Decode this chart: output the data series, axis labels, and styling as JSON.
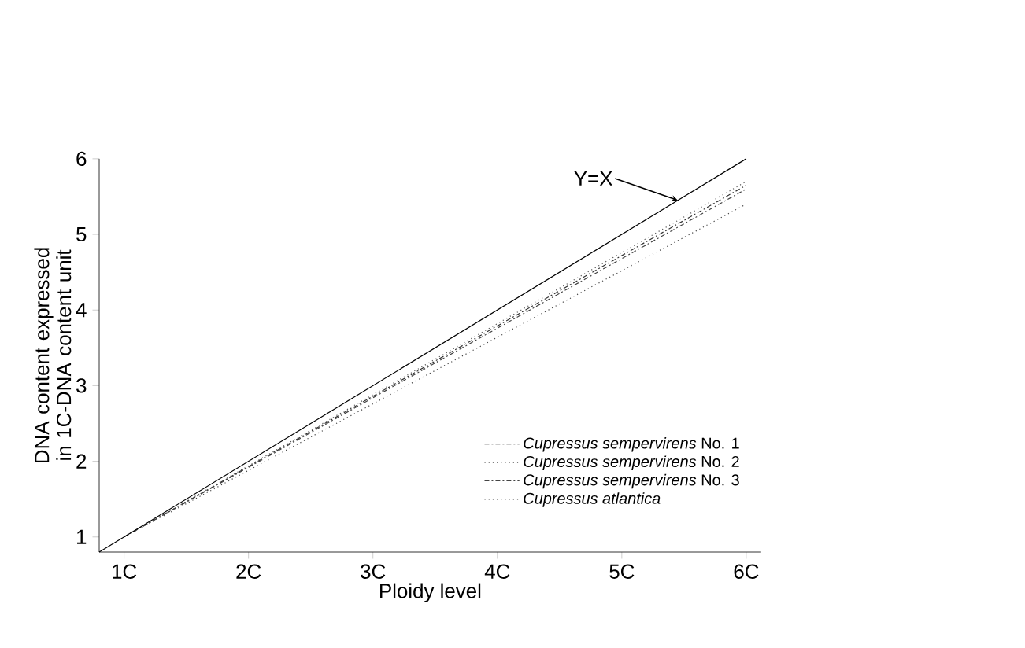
{
  "chart_data": {
    "type": "line",
    "xlabel": "Ploidy level",
    "ylabel": "DNA content expressed in 1C-DNA content unit",
    "xlim": [
      0.8,
      6.12
    ],
    "ylim": [
      0.8,
      6
    ],
    "xticks": [
      {
        "value": 1,
        "label": "1C"
      },
      {
        "value": 2,
        "label": "2C"
      },
      {
        "value": 3,
        "label": "3C"
      },
      {
        "value": 4,
        "label": "4C"
      },
      {
        "value": 5,
        "label": "5C"
      },
      {
        "value": 6,
        "label": "6C"
      }
    ],
    "yticks": [
      1,
      2,
      3,
      4,
      5,
      6
    ],
    "series": [
      {
        "name": "*Cupressus sempervirens* No. 1",
        "color": "#333333",
        "x": [
          1,
          6
        ],
        "values": [
          1,
          5.65
        ],
        "line_style": "dashed"
      },
      {
        "name": "*Cupressus sempervirens* No. 2",
        "color": "#555555",
        "x": [
          1,
          6
        ],
        "values": [
          1,
          5.7
        ],
        "line_style": "dotted"
      },
      {
        "name": "*Cupressus sempervirens* No. 3",
        "color": "#444444",
        "x": [
          1,
          6
        ],
        "values": [
          1,
          5.6
        ],
        "line_style": "dashed"
      },
      {
        "name": "*Cupressus atlantica*",
        "color": "#444444",
        "x": [
          1,
          6
        ],
        "values": [
          1,
          5.4
        ],
        "line_style": "dotted"
      },
      {
        "color": "#000000",
        "x": [
          0.8,
          6
        ],
        "values": [
          0.8,
          6
        ],
        "line_style": "solid"
      }
    ],
    "annotations": [
      {
        "text": "Y=X",
        "x": 5.45,
        "y": 5.45
      }
    ],
    "legend": "bottom right",
    "grid": false
  }
}
